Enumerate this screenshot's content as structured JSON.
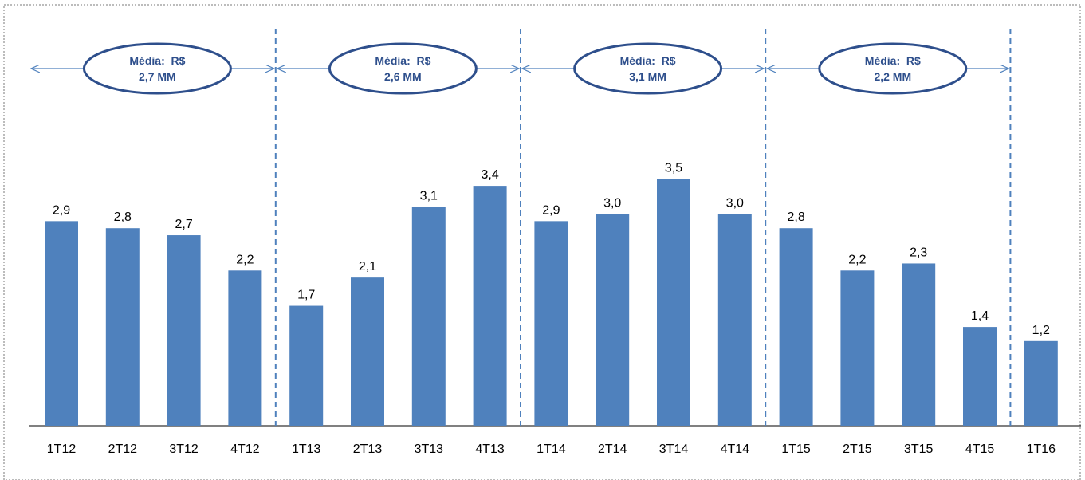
{
  "colors": {
    "bar": "#4f81bd",
    "divider": "#4f81bd",
    "average_border": "#2e4f8c",
    "average_text": "#2e4f8c",
    "frame": "#a6a6a6"
  },
  "chart_data": {
    "type": "bar",
    "categories": [
      "1T12",
      "2T12",
      "3T12",
      "4T12",
      "1T13",
      "2T13",
      "3T13",
      "4T13",
      "1T14",
      "2T14",
      "3T14",
      "4T14",
      "1T15",
      "2T15",
      "3T15",
      "4T15",
      "1T16"
    ],
    "values": [
      2.9,
      2.8,
      2.7,
      2.2,
      1.7,
      2.1,
      3.1,
      3.4,
      2.9,
      3.0,
      3.5,
      3.0,
      2.8,
      2.2,
      2.3,
      1.4,
      1.2
    ],
    "value_labels": [
      "2,9",
      "2,8",
      "2,7",
      "2,2",
      "1,7",
      "2,1",
      "3,1",
      "3,4",
      "2,9",
      "3,0",
      "3,5",
      "3,0",
      "2,8",
      "2,2",
      "2,3",
      "1,4",
      "1,2"
    ],
    "title": "",
    "xlabel": "",
    "ylabel": "",
    "ylim": [
      0,
      3.7
    ],
    "grid": false,
    "legend": "none",
    "annotations": [
      {
        "line1": "Média:  R$",
        "line2": "2,7 MM",
        "period_start": 0,
        "period_end": 3
      },
      {
        "line1": "Média:  R$",
        "line2": "2,6 MM",
        "period_start": 4,
        "period_end": 7
      },
      {
        "line1": "Média:  R$",
        "line2": "3,1 MM",
        "period_start": 8,
        "period_end": 11
      },
      {
        "line1": "Média:  R$",
        "line2": "2,2 MM",
        "period_start": 12,
        "period_end": 15
      }
    ],
    "dividers_after_index": [
      3,
      7,
      11,
      15
    ]
  }
}
